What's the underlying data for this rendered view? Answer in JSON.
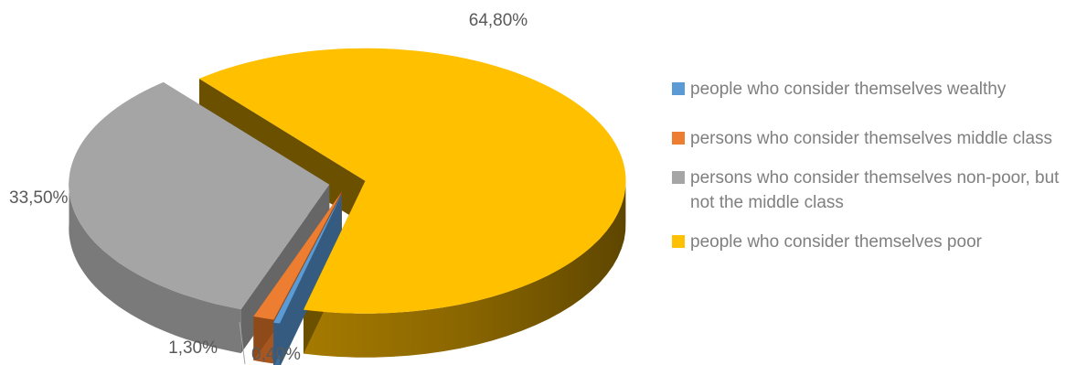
{
  "chart_data": {
    "type": "pie",
    "title": "",
    "series": [
      {
        "name": "people who consider themselves wealthy",
        "value": 0.4,
        "label": "0,40%",
        "color": "#5b9bd5"
      },
      {
        "name": "persons who consider themselves middle class",
        "value": 1.3,
        "label": "1,30%",
        "color": "#ed7d31"
      },
      {
        "name": "persons who consider themselves non-poor, but not the middle class",
        "value": 33.5,
        "label": "33,50%",
        "color": "#a5a5a5"
      },
      {
        "name": "people who consider themselves poor",
        "value": 64.8,
        "label": "64,80%",
        "color": "#ffc000"
      }
    ],
    "legend_position": "right",
    "exploded": true,
    "three_d": true
  }
}
